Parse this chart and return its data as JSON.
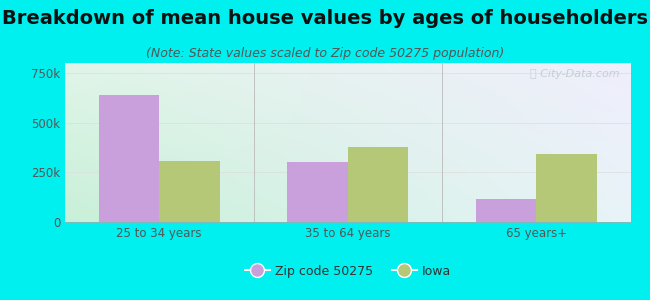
{
  "title": "Breakdown of mean house values by ages of householders",
  "subtitle": "(Note: State values scaled to Zip code 50275 population)",
  "categories": [
    "25 to 34 years",
    "35 to 64 years",
    "65 years+"
  ],
  "zip_values": [
    640000,
    300000,
    115000
  ],
  "iowa_values": [
    305000,
    375000,
    340000
  ],
  "zip_color": "#c9a0dc",
  "iowa_color": "#b5c878",
  "background_color": "#00efef",
  "ylim": [
    0,
    800000
  ],
  "yticks": [
    0,
    250000,
    500000,
    750000
  ],
  "ytick_labels": [
    "0",
    "250k",
    "500k",
    "750k"
  ],
  "legend_zip": "Zip code 50275",
  "legend_iowa": "Iowa",
  "bar_width": 0.32,
  "title_fontsize": 14,
  "subtitle_fontsize": 9,
  "tick_fontsize": 8.5,
  "legend_fontsize": 9
}
